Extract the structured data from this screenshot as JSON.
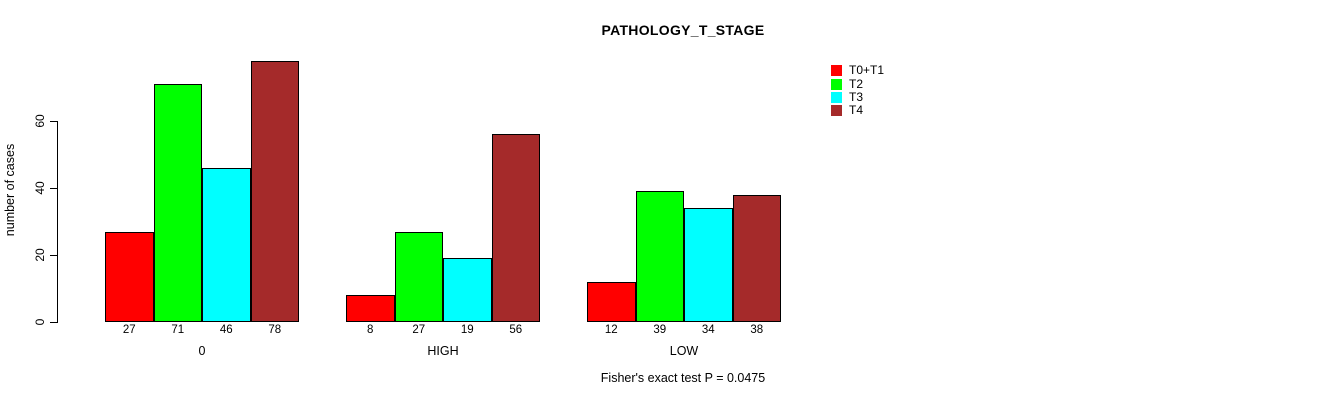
{
  "chart_data": {
    "type": "bar",
    "grouped": true,
    "title": "PATHOLOGY_T_STAGE",
    "ylabel": "number of cases",
    "xlabel": "",
    "categories": [
      "0",
      "HIGH",
      "LOW"
    ],
    "series": [
      {
        "name": "T0+T1",
        "color": "#FF0000",
        "values": [
          27,
          8,
          12
        ]
      },
      {
        "name": "T2",
        "color": "#00FF00",
        "values": [
          71,
          27,
          39
        ]
      },
      {
        "name": "T3",
        "color": "#00FFFF",
        "values": [
          46,
          19,
          34
        ]
      },
      {
        "name": "T4",
        "color": "#A52A2A",
        "values": [
          78,
          56,
          38
        ]
      }
    ],
    "bar_value_labels_shown": true,
    "yticks": [
      0,
      20,
      40,
      60
    ],
    "ylim": [
      0,
      80
    ],
    "grid": false,
    "legend_position": "top-right",
    "annotation": "Fisher's exact test P = 0.0475"
  }
}
